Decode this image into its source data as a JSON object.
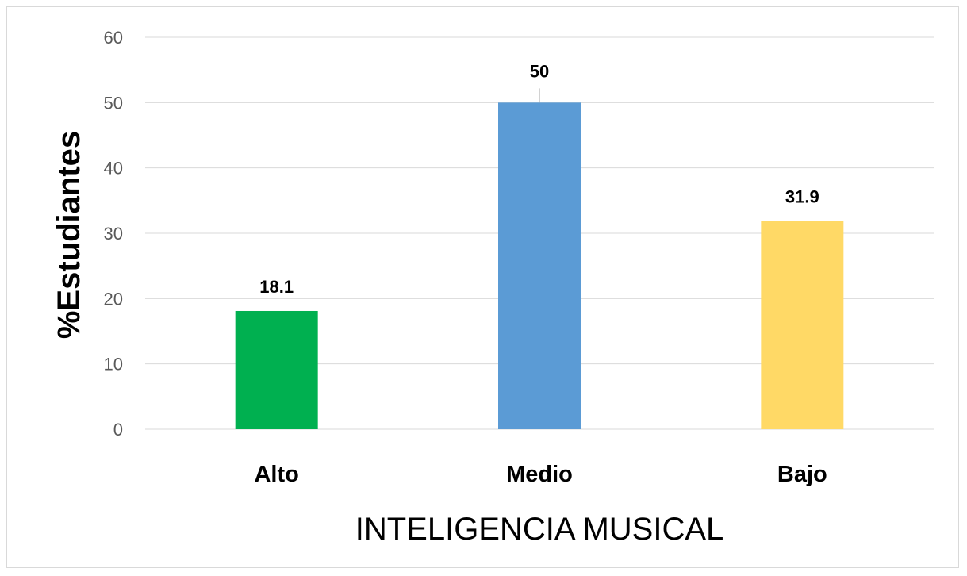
{
  "chart_data": {
    "type": "bar",
    "categories": [
      "Alto",
      "Medio",
      "Bajo"
    ],
    "values": [
      18.1,
      50,
      31.9
    ],
    "data_labels": [
      "18.1",
      "50",
      "31.9"
    ],
    "colors": [
      "#00b050",
      "#5b9bd5",
      "#ffd966"
    ],
    "title": "",
    "xlabel": "INTELIGENCIA MUSICAL",
    "ylabel": "%Estudiantes",
    "ylim": [
      0,
      60
    ],
    "yticks": [
      0,
      10,
      20,
      30,
      40,
      50,
      60
    ],
    "grid": true,
    "legend": "none"
  }
}
